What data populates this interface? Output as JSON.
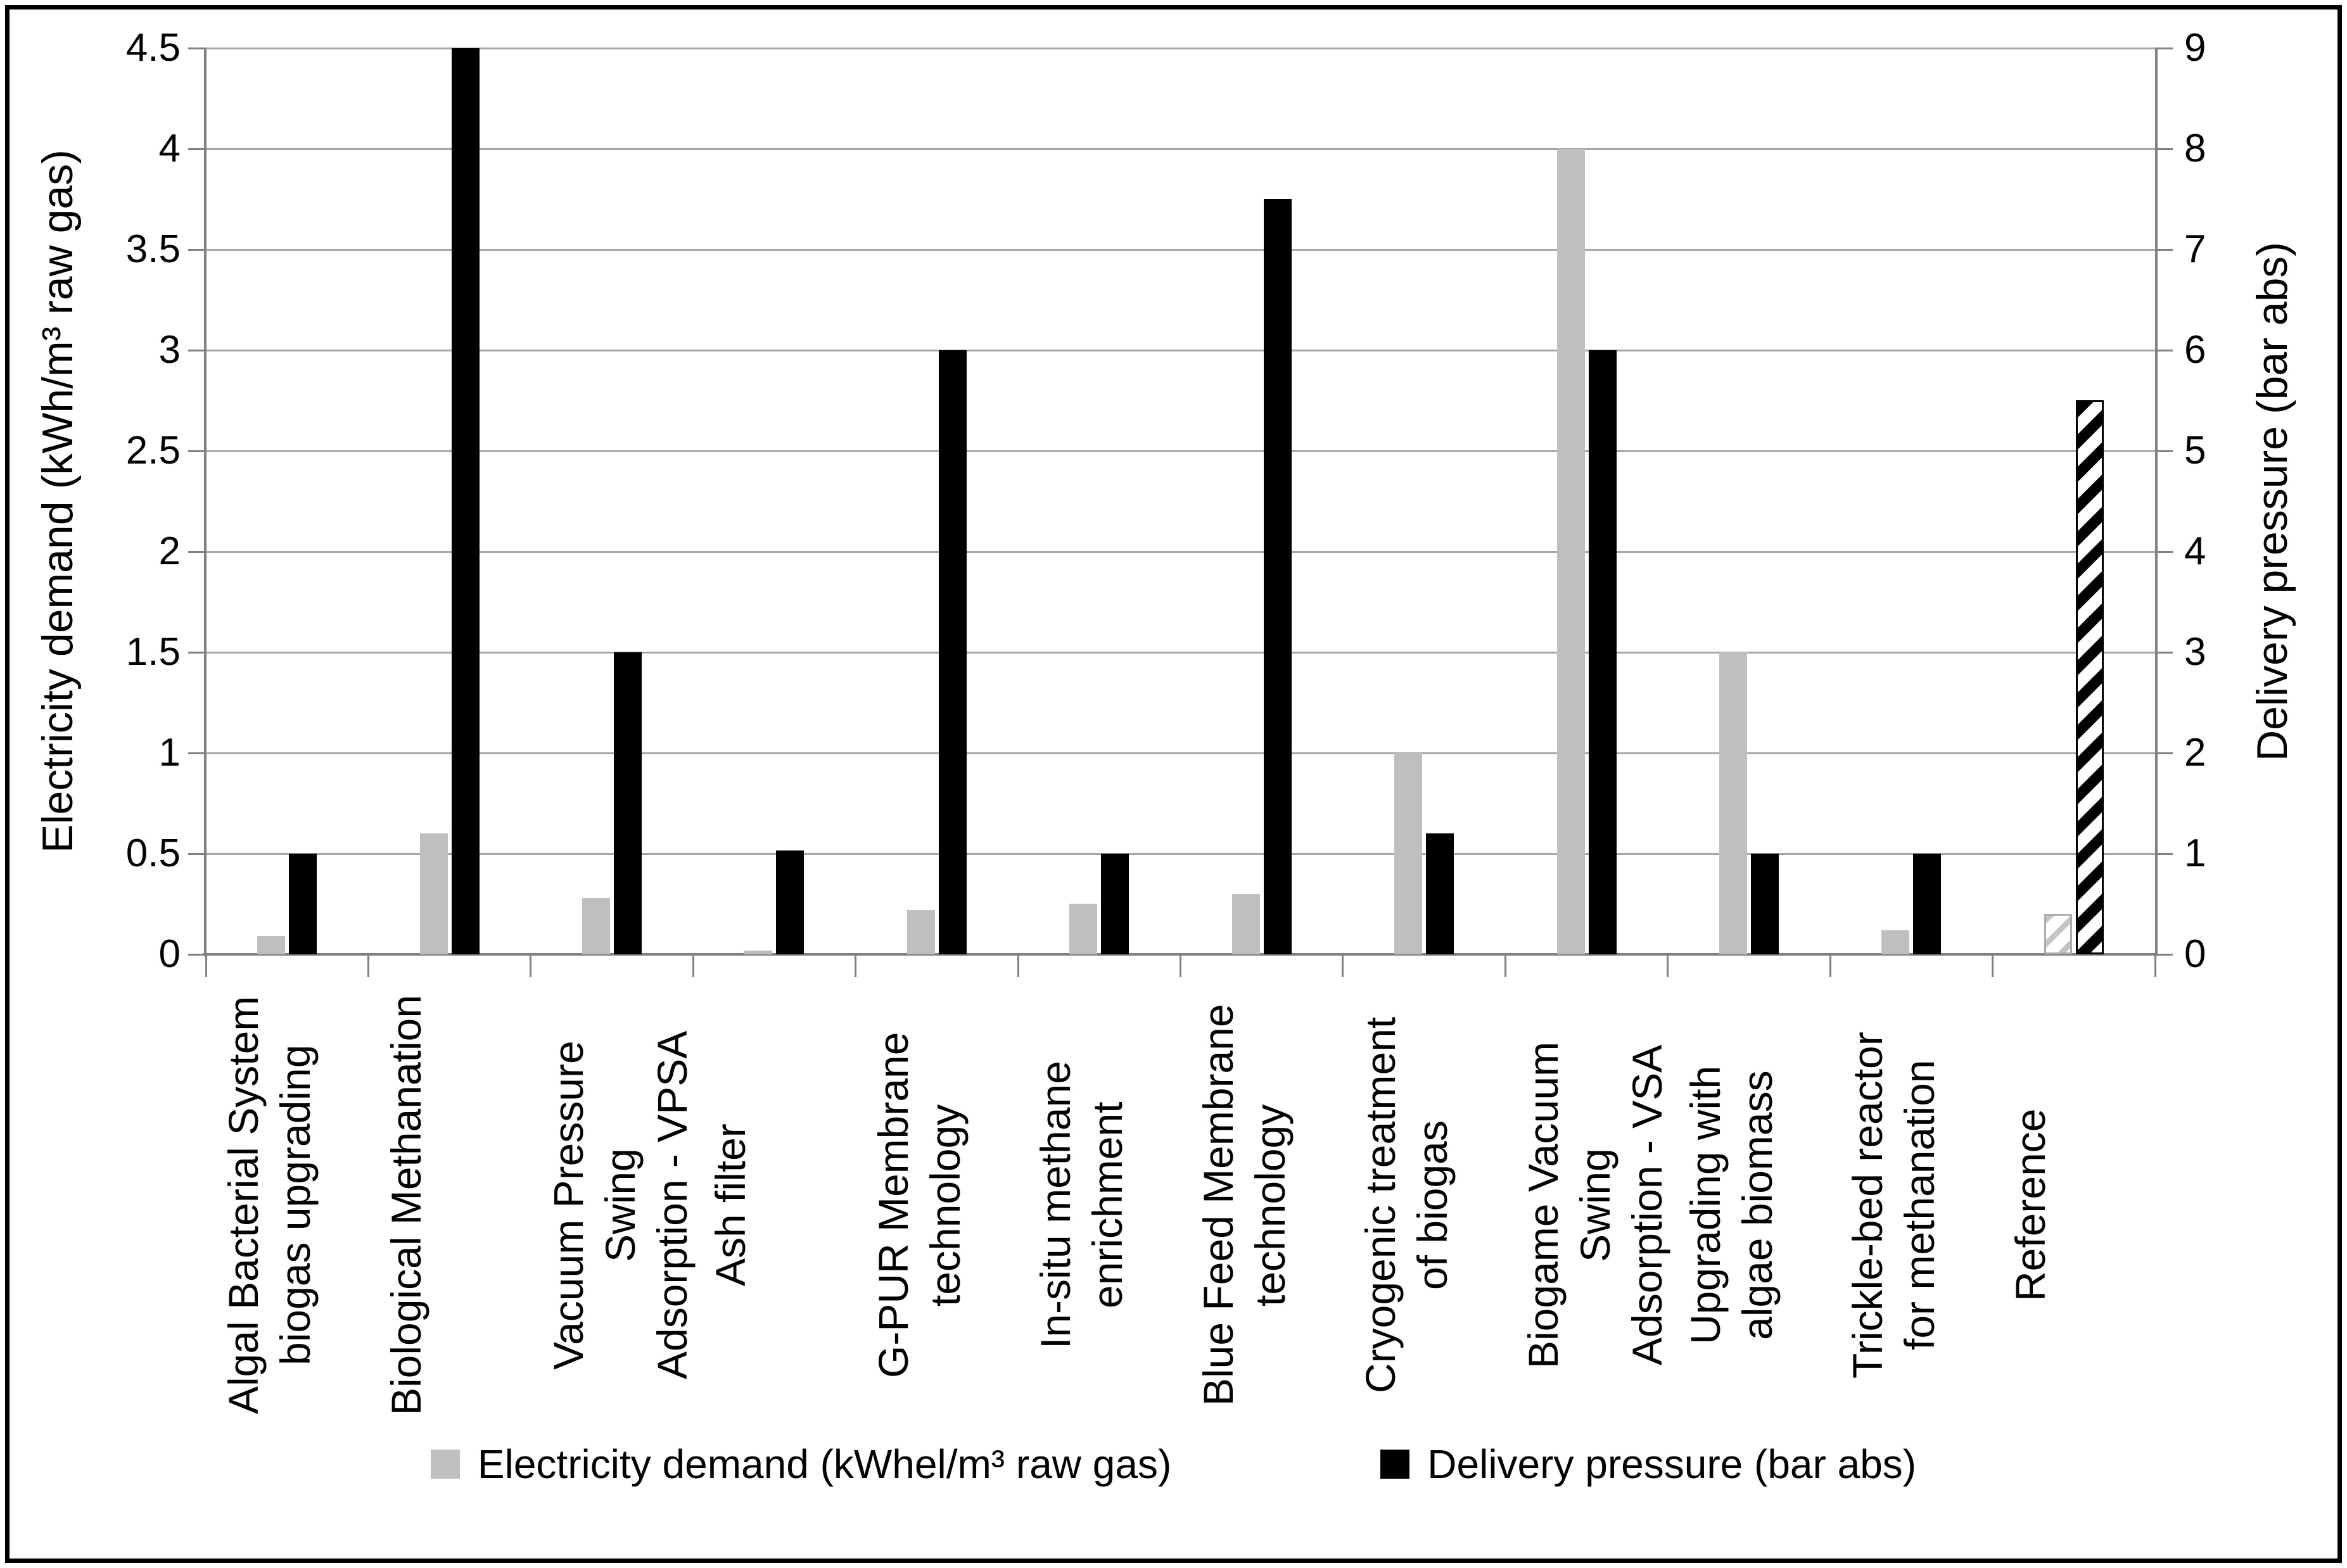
{
  "chart_data": {
    "type": "bar",
    "title": "",
    "grid": true,
    "legend_position": "bottom",
    "categories": [
      "Algal Bacterial System biogas upgrading",
      "Biological Methanation",
      "Vacuum Pressure Swing Adsorption - VPSA",
      "Ash filter",
      "G-PUR Membrane technology",
      "In-situ methane enrichment",
      "Blue Feed Membrane technology",
      "Cryogenic treatment of biogas",
      "Biogame Vacuum Swing Adsorption - VSA",
      "Upgrading with algae biomass",
      "Trickle-bed reactor for methanation",
      "Reference"
    ],
    "category_lines": [
      [
        "Algal Bacterial System",
        "biogas upgrading"
      ],
      [
        "Biological Methanation"
      ],
      [
        "Vacuum Pressure Swing",
        "Adsorption - VPSA"
      ],
      [
        "Ash filter"
      ],
      [
        "G-PUR Membrane",
        "technology"
      ],
      [
        "In-situ methane",
        "enrichment"
      ],
      [
        "Blue Feed Membrane",
        "technology"
      ],
      [
        "Cryogenic treatment",
        "of biogas"
      ],
      [
        "Biogame Vacuum Swing",
        "Adsorption - VSA"
      ],
      [
        "Upgrading with",
        "algae biomass"
      ],
      [
        "Trickle-bed reactor",
        "for methanation"
      ],
      [
        "Reference"
      ]
    ],
    "series": [
      {
        "name": "Electricity demand (kWhel/m³ raw gas)",
        "axis": "left",
        "color": "#bfbfbf",
        "last_bar_hatched": true,
        "values": [
          0.09,
          0.6,
          0.28,
          0.02,
          0.22,
          0.25,
          0.3,
          1.0,
          4.0,
          1.5,
          0.12,
          0.2
        ]
      },
      {
        "name": "Delivery pressure (bar abs)",
        "axis": "right",
        "color": "#000000",
        "last_bar_hatched": true,
        "values": [
          1.0,
          9.0,
          3.0,
          1.03,
          6.0,
          1.0,
          7.5,
          1.2,
          6.0,
          1.0,
          1.0,
          5.5
        ]
      }
    ],
    "left_axis": {
      "label": "Electricity demand (kWh/m³ raw gas)",
      "min": 0,
      "max": 4.5,
      "step": 0.5,
      "tick_labels": [
        "0",
        "0.5",
        "1",
        "1.5",
        "2",
        "2.5",
        "3",
        "3.5",
        "4",
        "4.5"
      ]
    },
    "right_axis": {
      "label": "Delivery pressure (bar abs)",
      "min": 0,
      "max": 9,
      "step": 1,
      "tick_labels": [
        "0",
        "1",
        "2",
        "3",
        "4",
        "5",
        "6",
        "7",
        "8",
        "9"
      ]
    },
    "legend": [
      {
        "label": "Electricity demand (kWhel/m³ raw gas)",
        "swatch": "#bfbfbf",
        "hatched": false
      },
      {
        "label": "Delivery pressure (bar abs)",
        "swatch": "#000000",
        "hatched": false
      }
    ],
    "colors": {
      "gridline": "#a6a6a6",
      "axis": "#808080",
      "bar_gray": "#bfbfbf",
      "bar_black": "#000000",
      "background": "#ffffff",
      "frame_border": "#000000"
    }
  }
}
